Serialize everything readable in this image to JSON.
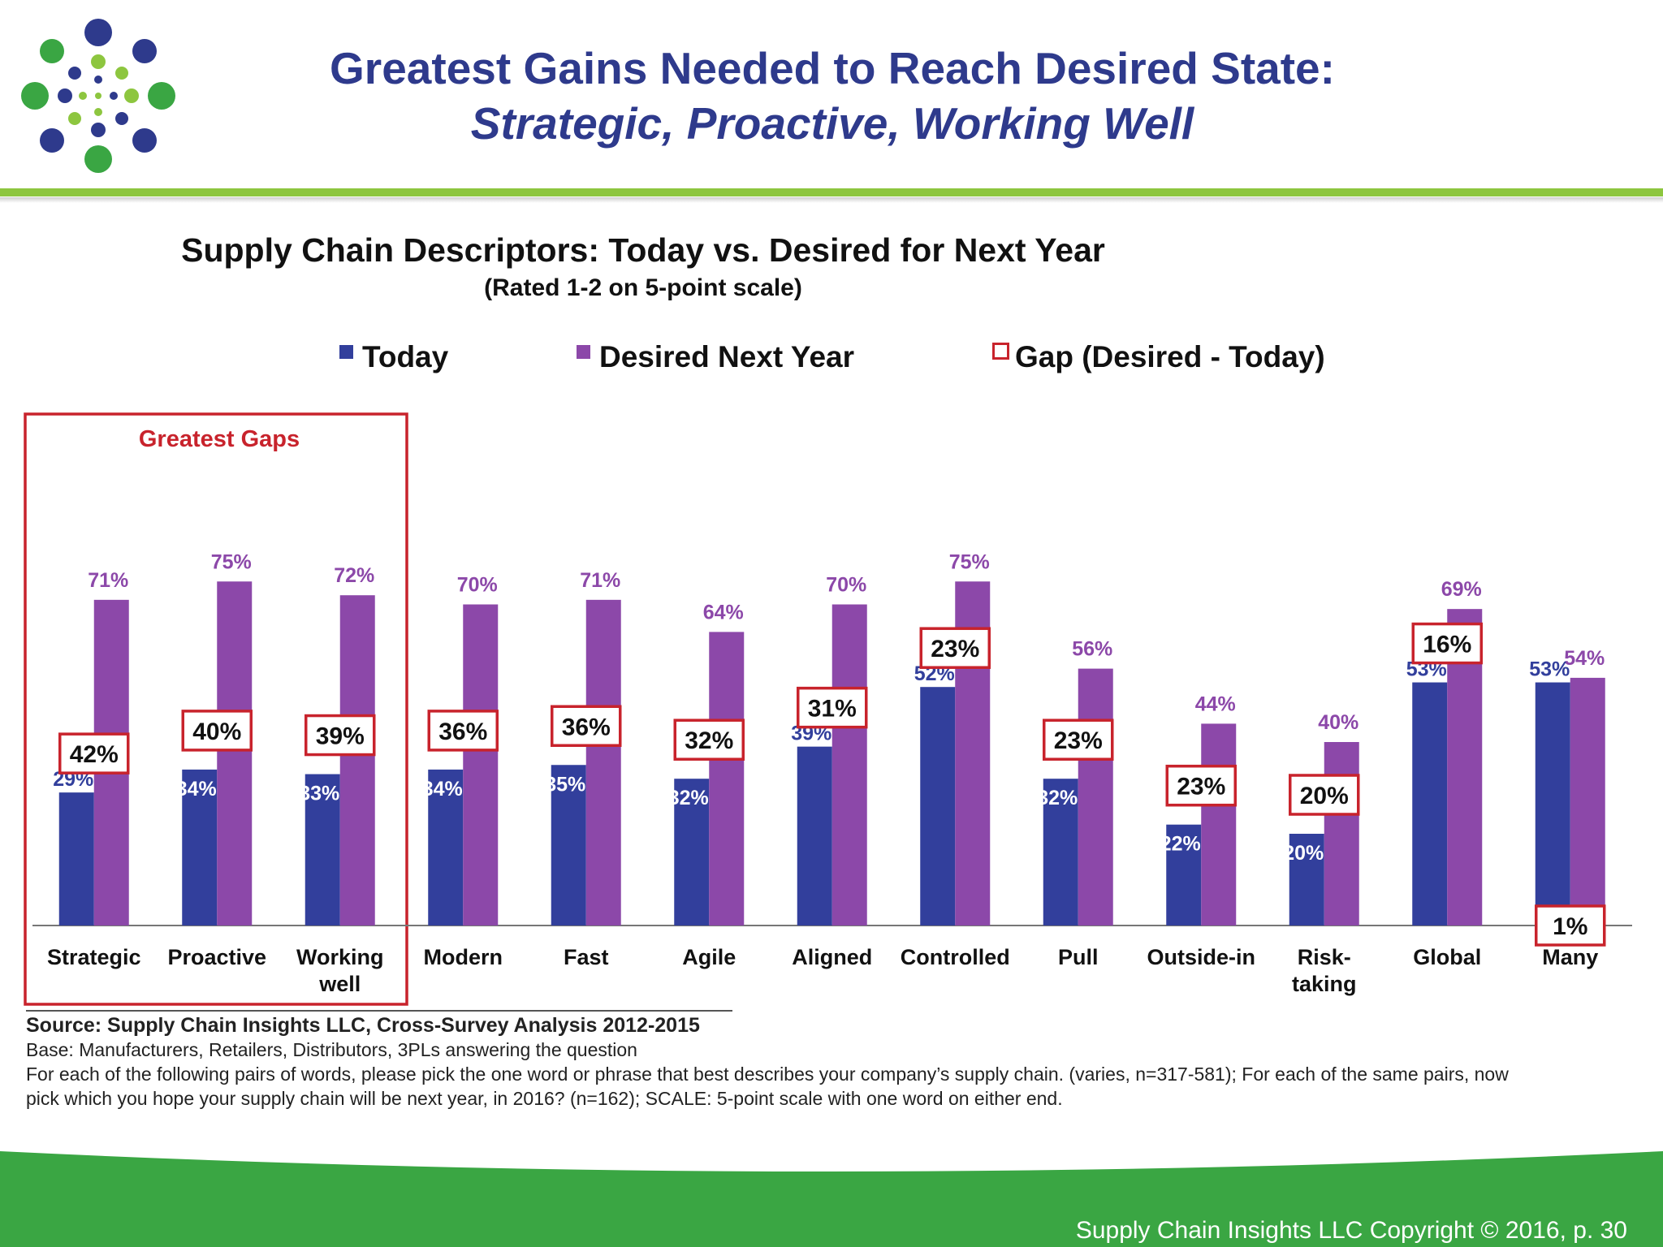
{
  "header": {
    "title_line1": "Greatest Gains Needed to Reach Desired State:",
    "title_line2": "Strategic, Proactive, Working Well"
  },
  "colors": {
    "today": "#323f9c",
    "desired": "#8c48a9",
    "gap_border": "#c8232c",
    "title": "#2e3a8c",
    "green": "#8dc63f",
    "footer_green": "#3aa643"
  },
  "chart_data": {
    "type": "bar",
    "title": "Supply Chain Descriptors: Today vs. Desired for Next Year",
    "subtitle": "(Rated 1-2 on 5-point scale)",
    "categories": [
      "Strategic",
      "Proactive",
      "Working well",
      "Modern",
      "Fast",
      "Agile",
      "Aligned",
      "Controlled",
      "Pull",
      "Outside-in",
      "Risk-taking",
      "Global",
      "Many"
    ],
    "category_lines": [
      [
        "Strategic"
      ],
      [
        "Proactive"
      ],
      [
        "Working",
        "well"
      ],
      [
        "Modern"
      ],
      [
        "Fast"
      ],
      [
        "Agile"
      ],
      [
        "Aligned"
      ],
      [
        "Controlled"
      ],
      [
        "Pull"
      ],
      [
        "Outside-in"
      ],
      [
        "Risk-",
        "taking"
      ],
      [
        "Global"
      ],
      [
        "Many"
      ]
    ],
    "series": [
      {
        "name": "Today",
        "values": [
          29,
          34,
          33,
          34,
          35,
          32,
          39,
          52,
          32,
          22,
          20,
          53,
          53
        ]
      },
      {
        "name": "Desired Next Year",
        "values": [
          71,
          75,
          72,
          70,
          71,
          64,
          70,
          75,
          56,
          44,
          40,
          69,
          54
        ]
      }
    ],
    "gap": {
      "name": "Gap (Desired - Today)",
      "values": [
        42,
        40,
        39,
        36,
        36,
        32,
        31,
        23,
        23,
        23,
        20,
        16,
        1
      ]
    },
    "ylim": [
      0,
      100
    ],
    "grid": false,
    "legend_position": "top",
    "highlight": {
      "label": "Greatest Gaps",
      "categories": [
        "Strategic",
        "Proactive",
        "Working well"
      ]
    }
  },
  "notes": {
    "source": "Source:  Supply Chain Insights LLC, Cross-Survey Analysis 2012-2015",
    "base": "Base:  Manufacturers, Retailers, Distributors, 3PLs answering the question",
    "question": "For each of the following pairs of words, please pick the one word or phrase that  best describes your company’s supply chain. (varies, n=317-581); For each of the same pairs, now pick which  you hope your supply chain will be next year, in 2016? (n=162); SCALE: 5-point scale with one word on either end."
  },
  "footer": {
    "copyright": "Supply Chain Insights LLC Copyright © 2016, p. 30"
  }
}
